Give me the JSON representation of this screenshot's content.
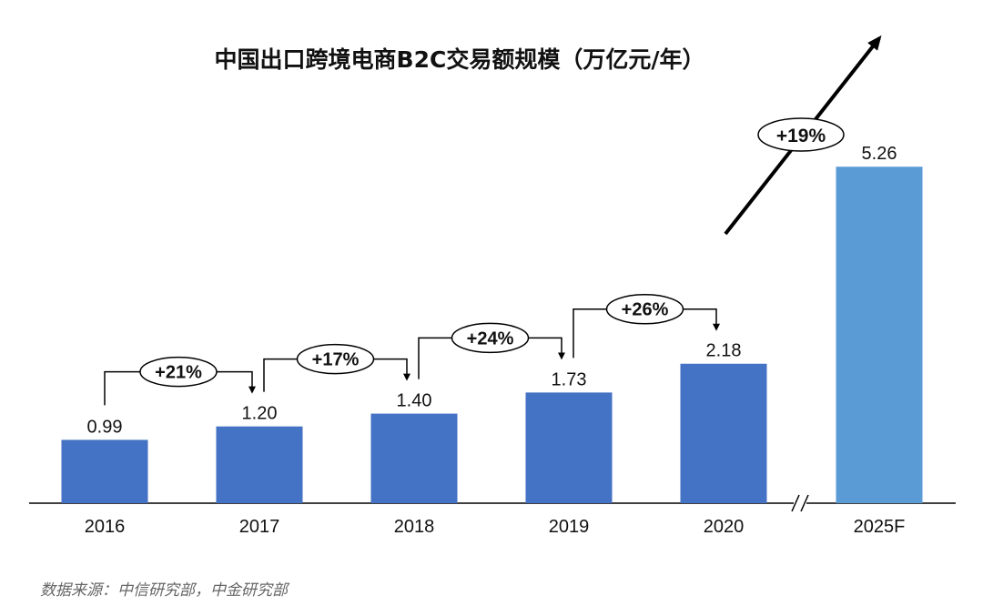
{
  "chart_data": {
    "type": "bar",
    "title": "中国出口跨境电商B2C交易额规模（万亿元/年）",
    "categories": [
      "2016",
      "2017",
      "2018",
      "2019",
      "2020",
      "2025F"
    ],
    "values": [
      0.99,
      1.2,
      1.4,
      1.73,
      2.18,
      5.26
    ],
    "value_labels": [
      "0.99",
      "1.20",
      "1.40",
      "1.73",
      "2.18",
      "5.26"
    ],
    "growth_annotations": [
      "+21%",
      "+17%",
      "+24%",
      "+26%"
    ],
    "cagr_annotation": "+19%",
    "xlabel": "",
    "ylabel": "",
    "ylim": [
      0,
      5.6
    ],
    "grid": false,
    "axis_break_before": "2025F",
    "colors": {
      "actual": "#4472C4",
      "forecast": "#5B9BD5"
    }
  },
  "source": "数据来源：中信研究部，中金研究部"
}
